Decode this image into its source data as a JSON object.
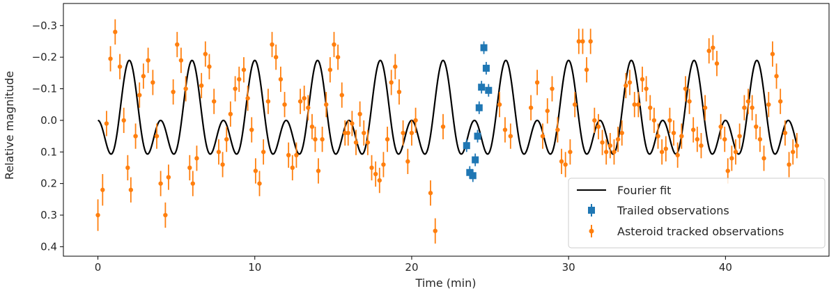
{
  "chart_data": {
    "type": "scatter",
    "title": "",
    "xlabel": "Time (min)",
    "ylabel": "Relative magnitude",
    "xlim": [
      -2.2,
      46.6
    ],
    "ylim": [
      0.43,
      -0.37
    ],
    "y_inverted": true,
    "xticks": [
      0,
      10,
      20,
      30,
      40
    ],
    "yticks": [
      -0.3,
      -0.2,
      -0.1,
      0.0,
      0.1,
      0.2,
      0.3,
      0.4
    ],
    "ytick_labels": [
      "−0.3",
      "−0.2",
      "−0.1",
      "0.0",
      "0.1",
      "0.2",
      "0.3",
      "0.4"
    ],
    "grid": false,
    "legend_position": "bottom-right",
    "fourier_fit": {
      "name": "Fourier fit",
      "color": "#000000",
      "x_range": [
        0,
        44.6
      ],
      "offset": 0.0,
      "terms": [
        {
          "amplitude": 0.095,
          "period": 2.0,
          "phase": -1.5708
        },
        {
          "amplitude": 0.095,
          "period": 4.0,
          "phase": 1.5708
        }
      ]
    },
    "series": [
      {
        "name": "Trailed observations",
        "color": "#1f77b4",
        "marker": "square",
        "points": [
          {
            "x": 23.5,
            "y": 0.08,
            "err": 0.02
          },
          {
            "x": 23.7,
            "y": 0.165,
            "err": 0.02
          },
          {
            "x": 23.9,
            "y": 0.175,
            "err": 0.02
          },
          {
            "x": 24.05,
            "y": 0.125,
            "err": 0.02
          },
          {
            "x": 24.2,
            "y": 0.05,
            "err": 0.02
          },
          {
            "x": 24.3,
            "y": -0.04,
            "err": 0.02
          },
          {
            "x": 24.45,
            "y": -0.105,
            "err": 0.02
          },
          {
            "x": 24.6,
            "y": -0.23,
            "err": 0.02
          },
          {
            "x": 24.75,
            "y": -0.165,
            "err": 0.02
          },
          {
            "x": 24.9,
            "y": -0.095,
            "err": 0.02
          }
        ]
      },
      {
        "name": "Asteroid tracked observations",
        "color": "#ff7f0e",
        "marker": "circle",
        "points": [
          {
            "x": 0.0,
            "y": 0.3,
            "err": 0.05
          },
          {
            "x": 0.3,
            "y": 0.22,
            "err": 0.05
          },
          {
            "x": 0.55,
            "y": 0.01,
            "err": 0.04
          },
          {
            "x": 0.8,
            "y": -0.195,
            "err": 0.04
          },
          {
            "x": 1.1,
            "y": -0.28,
            "err": 0.04
          },
          {
            "x": 1.4,
            "y": -0.17,
            "err": 0.04
          },
          {
            "x": 1.65,
            "y": 0.0,
            "err": 0.04
          },
          {
            "x": 1.9,
            "y": 0.15,
            "err": 0.04
          },
          {
            "x": 2.1,
            "y": 0.22,
            "err": 0.04
          },
          {
            "x": 2.4,
            "y": 0.05,
            "err": 0.04
          },
          {
            "x": 2.65,
            "y": -0.08,
            "err": 0.04
          },
          {
            "x": 2.9,
            "y": -0.14,
            "err": 0.04
          },
          {
            "x": 3.2,
            "y": -0.19,
            "err": 0.04
          },
          {
            "x": 3.5,
            "y": -0.12,
            "err": 0.04
          },
          {
            "x": 3.75,
            "y": 0.05,
            "err": 0.04
          },
          {
            "x": 4.0,
            "y": 0.2,
            "err": 0.04
          },
          {
            "x": 4.3,
            "y": 0.3,
            "err": 0.04
          },
          {
            "x": 4.5,
            "y": 0.18,
            "err": 0.04
          },
          {
            "x": 4.8,
            "y": -0.09,
            "err": 0.04
          },
          {
            "x": 5.05,
            "y": -0.24,
            "err": 0.04
          },
          {
            "x": 5.3,
            "y": -0.19,
            "err": 0.04
          },
          {
            "x": 5.6,
            "y": -0.1,
            "err": 0.04
          },
          {
            "x": 5.85,
            "y": 0.15,
            "err": 0.04
          },
          {
            "x": 6.05,
            "y": 0.2,
            "err": 0.04
          },
          {
            "x": 6.3,
            "y": 0.12,
            "err": 0.04
          },
          {
            "x": 6.6,
            "y": -0.11,
            "err": 0.04
          },
          {
            "x": 6.85,
            "y": -0.21,
            "err": 0.04
          },
          {
            "x": 7.1,
            "y": -0.17,
            "err": 0.04
          },
          {
            "x": 7.4,
            "y": -0.06,
            "err": 0.04
          },
          {
            "x": 7.7,
            "y": 0.1,
            "err": 0.04
          },
          {
            "x": 7.95,
            "y": 0.14,
            "err": 0.04
          },
          {
            "x": 8.2,
            "y": 0.06,
            "err": 0.04
          },
          {
            "x": 8.45,
            "y": -0.02,
            "err": 0.04
          },
          {
            "x": 8.75,
            "y": -0.1,
            "err": 0.04
          },
          {
            "x": 9.0,
            "y": -0.13,
            "err": 0.04
          },
          {
            "x": 9.3,
            "y": -0.16,
            "err": 0.04
          },
          {
            "x": 9.55,
            "y": -0.07,
            "err": 0.04
          },
          {
            "x": 9.8,
            "y": 0.03,
            "err": 0.04
          },
          {
            "x": 10.05,
            "y": 0.16,
            "err": 0.04
          },
          {
            "x": 10.3,
            "y": 0.2,
            "err": 0.04
          },
          {
            "x": 10.55,
            "y": 0.1,
            "err": 0.04
          },
          {
            "x": 10.85,
            "y": -0.06,
            "err": 0.04
          },
          {
            "x": 11.1,
            "y": -0.24,
            "err": 0.04
          },
          {
            "x": 11.35,
            "y": -0.2,
            "err": 0.04
          },
          {
            "x": 11.65,
            "y": -0.13,
            "err": 0.04
          },
          {
            "x": 11.9,
            "y": -0.05,
            "err": 0.04
          },
          {
            "x": 12.15,
            "y": 0.11,
            "err": 0.04
          },
          {
            "x": 12.4,
            "y": 0.15,
            "err": 0.04
          },
          {
            "x": 12.65,
            "y": 0.11,
            "err": 0.04
          },
          {
            "x": 12.9,
            "y": -0.06,
            "err": 0.04
          },
          {
            "x": 13.15,
            "y": -0.07,
            "err": 0.04
          },
          {
            "x": 13.4,
            "y": -0.04,
            "err": 0.04
          },
          {
            "x": 13.65,
            "y": 0.02,
            "err": 0.04
          },
          {
            "x": 13.85,
            "y": 0.06,
            "err": 0.04
          },
          {
            "x": 14.05,
            "y": 0.16,
            "err": 0.04
          },
          {
            "x": 14.3,
            "y": 0.06,
            "err": 0.04
          },
          {
            "x": 14.55,
            "y": -0.05,
            "err": 0.04
          },
          {
            "x": 14.8,
            "y": -0.16,
            "err": 0.04
          },
          {
            "x": 15.05,
            "y": -0.24,
            "err": 0.04
          },
          {
            "x": 15.3,
            "y": -0.2,
            "err": 0.04
          },
          {
            "x": 15.55,
            "y": -0.08,
            "err": 0.04
          },
          {
            "x": 15.75,
            "y": 0.04,
            "err": 0.04
          },
          {
            "x": 15.95,
            "y": 0.04,
            "err": 0.04
          },
          {
            "x": 16.2,
            "y": 0.01,
            "err": 0.04
          },
          {
            "x": 16.45,
            "y": 0.07,
            "err": 0.04
          },
          {
            "x": 16.7,
            "y": -0.02,
            "err": 0.04
          },
          {
            "x": 16.95,
            "y": 0.04,
            "err": 0.04
          },
          {
            "x": 17.2,
            "y": 0.07,
            "err": 0.04
          },
          {
            "x": 17.45,
            "y": 0.15,
            "err": 0.04
          },
          {
            "x": 17.7,
            "y": 0.17,
            "err": 0.04
          },
          {
            "x": 17.95,
            "y": 0.19,
            "err": 0.04
          },
          {
            "x": 18.2,
            "y": 0.14,
            "err": 0.04
          },
          {
            "x": 18.45,
            "y": 0.06,
            "err": 0.04
          },
          {
            "x": 18.7,
            "y": -0.12,
            "err": 0.04
          },
          {
            "x": 18.95,
            "y": -0.17,
            "err": 0.04
          },
          {
            "x": 19.2,
            "y": -0.09,
            "err": 0.04
          },
          {
            "x": 19.45,
            "y": 0.04,
            "err": 0.04
          },
          {
            "x": 19.75,
            "y": 0.13,
            "err": 0.04
          },
          {
            "x": 20.0,
            "y": 0.04,
            "err": 0.04
          },
          {
            "x": 20.25,
            "y": 0.0,
            "err": 0.04
          },
          {
            "x": 21.2,
            "y": 0.23,
            "err": 0.04
          },
          {
            "x": 21.5,
            "y": 0.35,
            "err": 0.04
          },
          {
            "x": 22.0,
            "y": 0.02,
            "err": 0.04
          },
          {
            "x": 25.6,
            "y": -0.05,
            "err": 0.04
          },
          {
            "x": 25.95,
            "y": 0.03,
            "err": 0.04
          },
          {
            "x": 26.3,
            "y": 0.05,
            "err": 0.04
          },
          {
            "x": 27.6,
            "y": -0.04,
            "err": 0.04
          },
          {
            "x": 28.0,
            "y": -0.12,
            "err": 0.04
          },
          {
            "x": 28.35,
            "y": 0.05,
            "err": 0.04
          },
          {
            "x": 28.65,
            "y": -0.03,
            "err": 0.04
          },
          {
            "x": 28.95,
            "y": -0.1,
            "err": 0.04
          },
          {
            "x": 29.3,
            "y": 0.03,
            "err": 0.04
          },
          {
            "x": 29.55,
            "y": 0.13,
            "err": 0.04
          },
          {
            "x": 29.8,
            "y": 0.14,
            "err": 0.04
          },
          {
            "x": 30.1,
            "y": 0.1,
            "err": 0.04
          },
          {
            "x": 30.4,
            "y": -0.05,
            "err": 0.04
          },
          {
            "x": 30.65,
            "y": -0.25,
            "err": 0.04
          },
          {
            "x": 30.9,
            "y": -0.25,
            "err": 0.04
          },
          {
            "x": 31.15,
            "y": -0.16,
            "err": 0.04
          },
          {
            "x": 31.4,
            "y": -0.25,
            "err": 0.04
          },
          {
            "x": 31.65,
            "y": 0.0,
            "err": 0.04
          },
          {
            "x": 31.9,
            "y": 0.02,
            "err": 0.04
          },
          {
            "x": 32.15,
            "y": 0.07,
            "err": 0.04
          },
          {
            "x": 32.4,
            "y": 0.1,
            "err": 0.04
          },
          {
            "x": 32.65,
            "y": 0.08,
            "err": 0.04
          },
          {
            "x": 32.9,
            "y": 0.1,
            "err": 0.04
          },
          {
            "x": 33.15,
            "y": 0.06,
            "err": 0.04
          },
          {
            "x": 33.4,
            "y": 0.04,
            "err": 0.04
          },
          {
            "x": 33.65,
            "y": -0.11,
            "err": 0.04
          },
          {
            "x": 33.9,
            "y": -0.12,
            "err": 0.04
          },
          {
            "x": 34.2,
            "y": -0.05,
            "err": 0.04
          },
          {
            "x": 34.45,
            "y": -0.05,
            "err": 0.04
          },
          {
            "x": 34.7,
            "y": -0.13,
            "err": 0.04
          },
          {
            "x": 34.95,
            "y": -0.1,
            "err": 0.04
          },
          {
            "x": 35.2,
            "y": -0.04,
            "err": 0.04
          },
          {
            "x": 35.45,
            "y": 0.0,
            "err": 0.04
          },
          {
            "x": 35.7,
            "y": 0.05,
            "err": 0.04
          },
          {
            "x": 35.95,
            "y": 0.1,
            "err": 0.04
          },
          {
            "x": 36.2,
            "y": 0.09,
            "err": 0.04
          },
          {
            "x": 36.45,
            "y": 0.0,
            "err": 0.04
          },
          {
            "x": 36.7,
            "y": 0.04,
            "err": 0.04
          },
          {
            "x": 36.95,
            "y": 0.11,
            "err": 0.04
          },
          {
            "x": 37.2,
            "y": 0.05,
            "err": 0.04
          },
          {
            "x": 37.45,
            "y": -0.1,
            "err": 0.04
          },
          {
            "x": 37.7,
            "y": -0.06,
            "err": 0.04
          },
          {
            "x": 37.95,
            "y": 0.03,
            "err": 0.04
          },
          {
            "x": 38.2,
            "y": 0.06,
            "err": 0.04
          },
          {
            "x": 38.45,
            "y": 0.08,
            "err": 0.04
          },
          {
            "x": 38.7,
            "y": -0.04,
            "err": 0.04
          },
          {
            "x": 38.95,
            "y": -0.22,
            "err": 0.04
          },
          {
            "x": 39.2,
            "y": -0.23,
            "err": 0.04
          },
          {
            "x": 39.45,
            "y": -0.18,
            "err": 0.04
          },
          {
            "x": 39.7,
            "y": 0.02,
            "err": 0.04
          },
          {
            "x": 39.95,
            "y": 0.06,
            "err": 0.04
          },
          {
            "x": 40.15,
            "y": 0.16,
            "err": 0.04
          },
          {
            "x": 40.4,
            "y": 0.12,
            "err": 0.04
          },
          {
            "x": 40.65,
            "y": 0.1,
            "err": 0.04
          },
          {
            "x": 40.9,
            "y": 0.05,
            "err": 0.04
          },
          {
            "x": 41.2,
            "y": -0.04,
            "err": 0.04
          },
          {
            "x": 41.45,
            "y": -0.06,
            "err": 0.04
          },
          {
            "x": 41.7,
            "y": -0.04,
            "err": 0.04
          },
          {
            "x": 41.95,
            "y": 0.02,
            "err": 0.04
          },
          {
            "x": 42.2,
            "y": 0.06,
            "err": 0.04
          },
          {
            "x": 42.45,
            "y": 0.12,
            "err": 0.04
          },
          {
            "x": 42.75,
            "y": -0.05,
            "err": 0.04
          },
          {
            "x": 43.0,
            "y": -0.21,
            "err": 0.04
          },
          {
            "x": 43.25,
            "y": -0.14,
            "err": 0.04
          },
          {
            "x": 43.5,
            "y": -0.06,
            "err": 0.04
          },
          {
            "x": 43.8,
            "y": 0.04,
            "err": 0.04
          },
          {
            "x": 44.05,
            "y": 0.14,
            "err": 0.04
          },
          {
            "x": 44.3,
            "y": 0.1,
            "err": 0.04
          },
          {
            "x": 44.55,
            "y": 0.08,
            "err": 0.04
          }
        ]
      }
    ],
    "legend": {
      "entries": [
        "Fourier fit",
        "Trailed observations",
        "Asteroid tracked observations"
      ]
    }
  }
}
